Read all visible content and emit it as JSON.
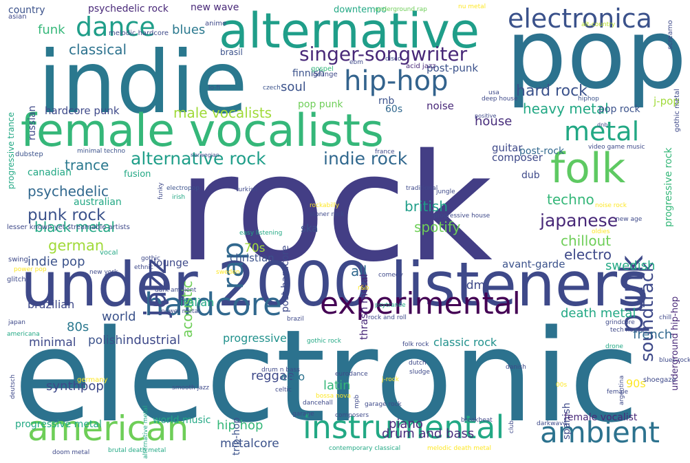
{
  "words": [
    {
      "text": "rock",
      "color": "#433e85"
    },
    {
      "text": "electronic",
      "color": "#2c728e"
    },
    {
      "text": "pop",
      "color": "#2c728e"
    },
    {
      "text": "indie",
      "color": "#2a788e"
    },
    {
      "text": "under 2000 listeners",
      "color": "#3e4989"
    },
    {
      "text": "female vocalists",
      "color": "#35b779"
    },
    {
      "text": "alternative",
      "color": "#1f9e89"
    },
    {
      "text": "american",
      "color": "#6ece58"
    },
    {
      "text": "experimental",
      "color": "#440154"
    },
    {
      "text": "instrumental",
      "color": "#22a884"
    },
    {
      "text": "hardcore",
      "color": "#31688e"
    },
    {
      "text": "ambient",
      "color": "#2c728e"
    },
    {
      "text": "folk",
      "color": "#5ec962"
    },
    {
      "text": "metal",
      "color": "#22a884"
    },
    {
      "text": "hip-hop",
      "color": "#33638d"
    },
    {
      "text": "electronica",
      "color": "#3b528b"
    },
    {
      "text": "jazz",
      "color": "#3e4989"
    },
    {
      "text": "punk",
      "color": "#3e4989"
    },
    {
      "text": "dance",
      "color": "#1f9e89"
    },
    {
      "text": "singer-songwriter",
      "color": "#482878"
    },
    {
      "text": "classical",
      "color": "#2c728e"
    },
    {
      "text": "alternative rock",
      "color": "#1f9e89"
    },
    {
      "text": "indie rock",
      "color": "#31688e"
    },
    {
      "text": "rap",
      "color": "#31688e"
    },
    {
      "text": "soundtrack",
      "color": "#3e4989"
    },
    {
      "text": "psychedelic",
      "color": "#31688e"
    },
    {
      "text": "punk rock",
      "color": "#3b528b"
    },
    {
      "text": "trance",
      "color": "#2a788e"
    },
    {
      "text": "british",
      "color": "#1f9e89"
    },
    {
      "text": "japanese",
      "color": "#482878"
    },
    {
      "text": "techno",
      "color": "#35b779"
    },
    {
      "text": "black metal",
      "color": "#22a884"
    },
    {
      "text": "german",
      "color": "#a0da39"
    },
    {
      "text": "spotify",
      "color": "#6ece58"
    },
    {
      "text": "chillout",
      "color": "#6ece58"
    },
    {
      "text": "electro",
      "color": "#3e4989"
    },
    {
      "text": "indie pop",
      "color": "#3b528b"
    },
    {
      "text": "acoustic",
      "color": "#6ece58"
    },
    {
      "text": "male vocalists",
      "color": "#a0da39"
    },
    {
      "text": "heavy metal",
      "color": "#22a884"
    },
    {
      "text": "hard rock",
      "color": "#3b528b"
    },
    {
      "text": "house",
      "color": "#472d7b"
    },
    {
      "text": "soul",
      "color": "#3b528b"
    },
    {
      "text": "all",
      "color": "#31688e"
    },
    {
      "text": "world",
      "color": "#3b528b"
    },
    {
      "text": "80s",
      "color": "#2a788e"
    },
    {
      "text": "industrial",
      "color": "#3e4989"
    },
    {
      "text": "progressive",
      "color": "#21918c"
    },
    {
      "text": "french",
      "color": "#31688e"
    },
    {
      "text": "death metal",
      "color": "#22a884"
    },
    {
      "text": "swedish",
      "color": "#22a884"
    },
    {
      "text": "classic rock",
      "color": "#21918c"
    },
    {
      "text": "reggae",
      "color": "#3e4989"
    },
    {
      "text": "latin",
      "color": "#35b779"
    },
    {
      "text": "piano",
      "color": "#482878"
    },
    {
      "text": "hip hop",
      "color": "#35b779"
    },
    {
      "text": "drum and bass",
      "color": "#472d7b"
    },
    {
      "text": "metalcore",
      "color": "#3b528b"
    },
    {
      "text": "emo",
      "color": "#2c728e"
    },
    {
      "text": "synthpop",
      "color": "#3e4989"
    },
    {
      "text": "minimal",
      "color": "#3e4989"
    },
    {
      "text": "polish",
      "color": "#3b528b"
    },
    {
      "text": "brazilian",
      "color": "#3e4989"
    },
    {
      "text": "italian",
      "color": "#22a884"
    },
    {
      "text": "lounge",
      "color": "#3e4989"
    },
    {
      "text": "christian",
      "color": "#3b528b"
    },
    {
      "text": "70s",
      "color": "#a0da39"
    },
    {
      "text": "idm",
      "color": "#3e4989"
    },
    {
      "text": "avant-garde",
      "color": "#3b528b"
    },
    {
      "text": "ska",
      "color": "#3b528b"
    },
    {
      "text": "funk",
      "color": "#35b779"
    },
    {
      "text": "blues",
      "color": "#2a788e"
    },
    {
      "text": "country",
      "color": "#3b528b"
    },
    {
      "text": "psychedelic rock",
      "color": "#482878"
    },
    {
      "text": "new wave",
      "color": "#482878"
    },
    {
      "text": "downtempo",
      "color": "#22a884"
    },
    {
      "text": "russian",
      "color": "#3e4989"
    },
    {
      "text": "hardcore punk",
      "color": "#3e4989"
    },
    {
      "text": "finnish",
      "color": "#3b528b"
    },
    {
      "text": "post-punk",
      "color": "#3b528b"
    },
    {
      "text": "noise",
      "color": "#482878"
    },
    {
      "text": "pop punk",
      "color": "#6ece58"
    },
    {
      "text": "rnb",
      "color": "#3b528b"
    },
    {
      "text": "60s",
      "color": "#31688e"
    },
    {
      "text": "j-pop",
      "color": "#a0da39"
    },
    {
      "text": "pop rock",
      "color": "#3b528b"
    },
    {
      "text": "post-rock",
      "color": "#31688e"
    },
    {
      "text": "guitar",
      "color": "#3e4989"
    },
    {
      "text": "composer",
      "color": "#3e4989"
    },
    {
      "text": "dub",
      "color": "#3e4989"
    },
    {
      "text": "canadian",
      "color": "#22a884"
    },
    {
      "text": "fusion",
      "color": "#22a884"
    },
    {
      "text": "australian",
      "color": "#22a884"
    },
    {
      "text": "post-hardcore",
      "color": "#3e4989"
    },
    {
      "text": "thrash metal",
      "color": "#482878"
    },
    {
      "text": "spanish",
      "color": "#3e4989"
    },
    {
      "text": "trip-hop",
      "color": "#3b528b"
    },
    {
      "text": "90s",
      "color": "#fde725"
    },
    {
      "text": "female vocalist",
      "color": "#482878"
    },
    {
      "text": "world music",
      "color": "#22a884"
    },
    {
      "text": "progressive metal",
      "color": "#22a884"
    },
    {
      "text": "progressive rock",
      "color": "#35b779"
    },
    {
      "text": "underground hip-hop",
      "color": "#482878"
    },
    {
      "text": "progressive trance",
      "color": "#22a884"
    },
    {
      "text": "melodic hardcore",
      "color": "#3e4989"
    },
    {
      "text": "brasil",
      "color": "#3b528b"
    },
    {
      "text": "gospel",
      "color": "#35b779"
    },
    {
      "text": "grunge",
      "color": "#3e4989"
    },
    {
      "text": "anime",
      "color": "#3e4989"
    },
    {
      "text": "nu metal",
      "color": "#fde725"
    },
    {
      "text": "asian",
      "color": "#3e4989"
    },
    {
      "text": "underground rap",
      "color": "#6ece58"
    },
    {
      "text": "screamo",
      "color": "#3e4989"
    },
    {
      "text": "alt-country",
      "color": "#b5de2b"
    },
    {
      "text": "gothic metal",
      "color": "#3e4989"
    },
    {
      "text": "acid jazz",
      "color": "#482878"
    },
    {
      "text": "disco",
      "color": "#3e4989"
    },
    {
      "text": "ebm",
      "color": "#3e4989"
    },
    {
      "text": "lo-fi",
      "color": "#3b528b"
    },
    {
      "text": "czech",
      "color": "#3b528b"
    },
    {
      "text": "usa",
      "color": "#3e4989"
    },
    {
      "text": "hiphop",
      "color": "#3b528b"
    },
    {
      "text": "deep house",
      "color": "#3e4989"
    },
    {
      "text": "positive",
      "color": "#3e4989"
    },
    {
      "text": "dnb",
      "color": "#3e4989"
    },
    {
      "text": "video game music",
      "color": "#3e4989"
    },
    {
      "text": "dubstep",
      "color": "#3b528b"
    },
    {
      "text": "minimal techno",
      "color": "#3b528b"
    },
    {
      "text": "norwegian",
      "color": "#3e4989"
    },
    {
      "text": "electropop",
      "color": "#3b528b"
    },
    {
      "text": "france",
      "color": "#3e4989"
    },
    {
      "text": "turkish",
      "color": "#3e4989"
    },
    {
      "text": "traditional",
      "color": "#3e4989"
    },
    {
      "text": "jungle",
      "color": "#3e4989"
    },
    {
      "text": "funky",
      "color": "#3e4989"
    },
    {
      "text": "irish",
      "color": "#22a884"
    },
    {
      "text": "rockabilly",
      "color": "#fde725"
    },
    {
      "text": "stoner rock",
      "color": "#3e4989"
    },
    {
      "text": "progressive house",
      "color": "#3e4989"
    },
    {
      "text": "noise rock",
      "color": "#fde725"
    },
    {
      "text": "new age",
      "color": "#3e4989"
    },
    {
      "text": "oldies",
      "color": "#fde725"
    },
    {
      "text": "lesser known yet streamable artists",
      "color": "#3e4989"
    },
    {
      "text": "swing",
      "color": "#3e4989"
    },
    {
      "text": "gothic",
      "color": "#3e4989"
    },
    {
      "text": "easy listening",
      "color": "#22a884"
    },
    {
      "text": "sweden",
      "color": "#fde725"
    },
    {
      "text": "ethnic",
      "color": "#3e4989"
    },
    {
      "text": "new york",
      "color": "#3e4989"
    },
    {
      "text": "vocal",
      "color": "#22a884"
    },
    {
      "text": "glitch",
      "color": "#3e4989"
    },
    {
      "text": "power pop",
      "color": "#fde725"
    },
    {
      "text": "dark ambient",
      "color": "#3e4989"
    },
    {
      "text": "power metal",
      "color": "#3e4989"
    },
    {
      "text": "comedy",
      "color": "#3e4989"
    },
    {
      "text": "r&b",
      "color": "#fde725"
    },
    {
      "text": "psytrance",
      "color": "#22a884"
    },
    {
      "text": "rock and roll",
      "color": "#3e4989"
    },
    {
      "text": "brazil",
      "color": "#3e4989"
    },
    {
      "text": "chill",
      "color": "#3e4989"
    },
    {
      "text": "japan",
      "color": "#3e4989"
    },
    {
      "text": "grindcore",
      "color": "#3e4989"
    },
    {
      "text": "tech house",
      "color": "#3e4989"
    },
    {
      "text": "americana",
      "color": "#22a884"
    },
    {
      "text": "gothic rock",
      "color": "#22a884"
    },
    {
      "text": "folk rock",
      "color": "#3e4989"
    },
    {
      "text": "drone",
      "color": "#22a884"
    },
    {
      "text": "argentina",
      "color": "#3e4989"
    },
    {
      "text": "blues rock",
      "color": "#3e4989"
    },
    {
      "text": "alternative metal",
      "color": "#22a884"
    },
    {
      "text": "deutsch",
      "color": "#3e4989"
    },
    {
      "text": "germany",
      "color": "#fde725"
    },
    {
      "text": "drum n bass",
      "color": "#3e4989"
    },
    {
      "text": "celtic",
      "color": "#3e4989"
    },
    {
      "text": "eurodance",
      "color": "#3e4989"
    },
    {
      "text": "dutch",
      "color": "#3e4989"
    },
    {
      "text": "sludge",
      "color": "#3e4989"
    },
    {
      "text": "j-rock",
      "color": "#fde725"
    },
    {
      "text": "danish",
      "color": "#3e4989"
    },
    {
      "text": "00s",
      "color": "#fde725"
    },
    {
      "text": "shoegaze",
      "color": "#3e4989"
    },
    {
      "text": "female",
      "color": "#3e4989"
    },
    {
      "text": "smooth jazz",
      "color": "#3e4989"
    },
    {
      "text": "mpb",
      "color": "#3e4989"
    },
    {
      "text": "bossa nova",
      "color": "#fde725"
    },
    {
      "text": "garage",
      "color": "#3e4989"
    },
    {
      "text": "garage rock",
      "color": "#3e4989"
    },
    {
      "text": "club",
      "color": "#3e4989"
    },
    {
      "text": "composers",
      "color": "#3e4989"
    },
    {
      "text": "dancehall",
      "color": "#3e4989"
    },
    {
      "text": "breakbeat",
      "color": "#3e4989"
    },
    {
      "text": "darkwave",
      "color": "#3e4989"
    },
    {
      "text": "doom metal",
      "color": "#3e4989"
    },
    {
      "text": "brutal death metal",
      "color": "#22a884"
    },
    {
      "text": "contemporary classical",
      "color": "#22a884"
    },
    {
      "text": "melodic death metal",
      "color": "#fde725"
    }
  ]
}
